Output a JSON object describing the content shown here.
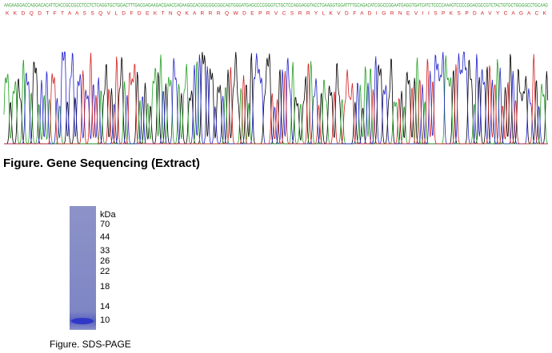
{
  "sequencing": {
    "dna": "AAGAAGGACCAGGACACATTCACCGCCGCCTCCTCTCAGGTGCTGGACTTTGACGAGAAGACGAACCAGAAGGCACGGCGGCGGCAGTGGGATGAGCCCCGGGTCTGCTCCAGGAGGTACCTGAAGGTGGATTTTGCAGACATCGGCCGGAATGAGGTGATCATCTCCCCAAAGTCCCCGGACGCCGTCTACTGTGCTGGGGCCTGCAAG",
    "protein": "K K D Q D T F T A A S S Q V L D F D E K T N Q K A R R R Q W D E P R V C S R R Y L K V D F A D I G R N E V I I S P K S P D A V Y C A G A C K",
    "caption": "Figure. Gene Sequencing (Extract)"
  },
  "gel": {
    "unit": "kDa",
    "markers": [
      70,
      44,
      33,
      26,
      22,
      18,
      14,
      10
    ],
    "caption": "Figure. SDS-PAGE"
  }
}
